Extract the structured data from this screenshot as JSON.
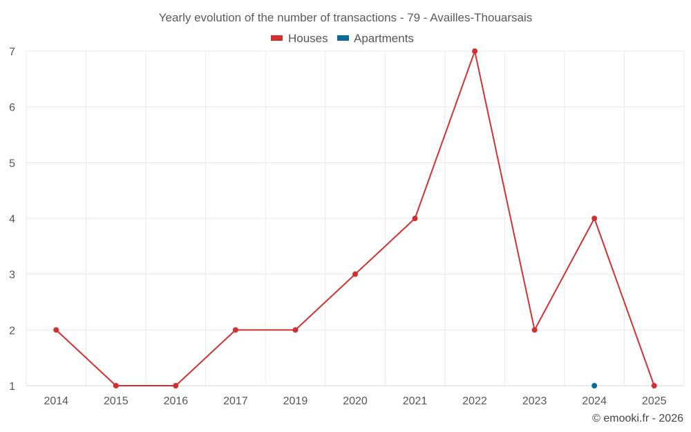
{
  "chart_data": {
    "type": "line",
    "title": "Yearly evolution of the number of transactions - 79 - Availles-Thouarsais",
    "categories": [
      "2014",
      "2015",
      "2016",
      "2017",
      "2019",
      "2020",
      "2021",
      "2022",
      "2023",
      "2024",
      "2025"
    ],
    "y_ticks": [
      "1",
      "2",
      "3",
      "4",
      "5",
      "6",
      "7"
    ],
    "ylim": [
      1,
      7
    ],
    "grid": true,
    "legend_position": "top-center",
    "series": [
      {
        "name": "Houses",
        "color": "#d32f2f",
        "values": [
          2,
          1,
          1,
          2,
          2,
          3,
          4,
          7,
          2,
          4,
          1
        ]
      },
      {
        "name": "Apartments",
        "color": "#0b6c97",
        "values": [
          null,
          null,
          null,
          null,
          null,
          null,
          null,
          null,
          null,
          1,
          null
        ]
      }
    ]
  },
  "credit": "© emooki.fr - 2026"
}
